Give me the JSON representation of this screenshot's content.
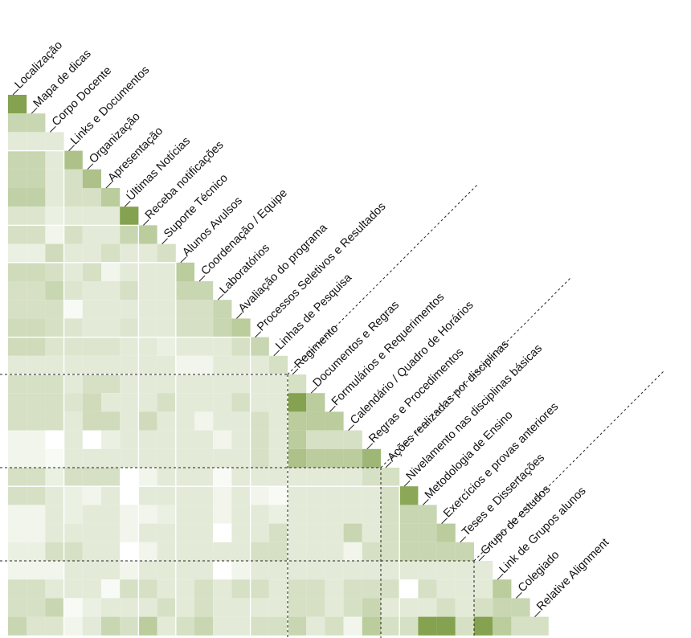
{
  "chart_data": {
    "type": "heatmap",
    "labels": [
      "Localização",
      "Mapa de dicas",
      "Corpo Docente",
      "Links e Documentos",
      "Organização",
      "Apresentação",
      "Últimas Notícias",
      "Receba notificações",
      "Suporte Técnico",
      "Alunos Avulsos",
      "Coordenação / Equipe",
      "Laboratórios",
      "Avaliação do programa",
      "Processos Seletivos e Resultados",
      "Linhas de Pesquisa",
      "Regimento",
      "Documentos e Regras",
      "Formulários e Requerimentos",
      "Calendário / Quadro de Horários",
      "Regras e Procedimentos",
      "Ações realizadas por disciplinas",
      "Nivelamento nas disciplinas básicas",
      "Metodologia de Ensino",
      "Exercícios e provas anteriores",
      "Teses e Dissertações",
      "Grupo de estudos",
      "Link de Grupos alunos",
      "Colegiado",
      "Relative Alignment"
    ],
    "group_boundaries": [
      15,
      20,
      25
    ],
    "block_separators": [
      3,
      7,
      9,
      13,
      15,
      21
    ],
    "color_low": "#ffffff",
    "color_high": "#76983b",
    "value_range": [
      0,
      1
    ],
    "matrix": [
      [
        0.9
      ],
      [
        0.4,
        0.4
      ],
      [
        0.2,
        0.2,
        0.2
      ],
      [
        0.4,
        0.4,
        0.2,
        0.6
      ],
      [
        0.4,
        0.4,
        0.2,
        0.3,
        0.6
      ],
      [
        0.45,
        0.45,
        0.2,
        0.3,
        0.3,
        0.5
      ],
      [
        0.25,
        0.25,
        0.15,
        0.2,
        0.2,
        0.2,
        0.9
      ],
      [
        0.3,
        0.3,
        0.1,
        0.3,
        0.2,
        0.2,
        0.4,
        0.5
      ],
      [
        0.15,
        0.15,
        0.35,
        0.2,
        0.2,
        0.3,
        0.2,
        0.2,
        0.3
      ],
      [
        0.35,
        0.35,
        0.3,
        0.2,
        0.3,
        0.1,
        0.2,
        0.2,
        0.2,
        0.5
      ],
      [
        0.3,
        0.3,
        0.4,
        0.25,
        0.2,
        0.2,
        0.3,
        0.2,
        0.2,
        0.4,
        0.4
      ],
      [
        0.3,
        0.3,
        0.3,
        0.05,
        0.2,
        0.2,
        0.2,
        0.2,
        0.2,
        0.3,
        0.3,
        0.4
      ],
      [
        0.35,
        0.35,
        0.3,
        0.25,
        0.2,
        0.2,
        0.25,
        0.2,
        0.2,
        0.3,
        0.3,
        0.4,
        0.5
      ],
      [
        0.35,
        0.35,
        0.25,
        0.25,
        0.25,
        0.25,
        0.2,
        0.2,
        0.15,
        0.2,
        0.2,
        0.2,
        0.3,
        0.4
      ],
      [
        0.2,
        0.2,
        0.2,
        0.2,
        0.2,
        0.2,
        0.2,
        0.2,
        0.2,
        0.1,
        0.1,
        0.2,
        0.2,
        0.2,
        0.3
      ],
      [
        0.3,
        0.3,
        0.3,
        0.2,
        0.3,
        0.3,
        0.2,
        0.2,
        0.2,
        0.2,
        0.2,
        0.2,
        0.2,
        0.2,
        0.2,
        0.3
      ],
      [
        0.3,
        0.3,
        0.3,
        0.25,
        0.35,
        0.2,
        0.2,
        0.2,
        0.3,
        0.2,
        0.2,
        0.2,
        0.3,
        0.2,
        0.2,
        0.9,
        0.5
      ],
      [
        0.3,
        0.3,
        0.3,
        0.2,
        0.35,
        0.35,
        0.2,
        0.35,
        0.2,
        0.2,
        0.1,
        0.2,
        0.2,
        0.3,
        0.2,
        0.5,
        0.5,
        0.5
      ],
      [
        0.1,
        0.1,
        0.0,
        0.2,
        0.0,
        0.15,
        0.2,
        0.2,
        0.2,
        0.2,
        0.2,
        0.1,
        0.2,
        0.3,
        0.2,
        0.5,
        0.3,
        0.3,
        0.3
      ],
      [
        0.1,
        0.1,
        0.05,
        0.2,
        0.2,
        0.2,
        0.2,
        0.2,
        0.2,
        0.2,
        0.2,
        0.2,
        0.2,
        0.3,
        0.2,
        0.6,
        0.5,
        0.5,
        0.5,
        0.7
      ],
      [
        0.3,
        0.3,
        0.15,
        0.3,
        0.3,
        0.3,
        0.0,
        0.1,
        0.2,
        0.2,
        0.2,
        0.05,
        0.2,
        0.2,
        0.2,
        0.2,
        0.2,
        0.2,
        0.2,
        0.3,
        0.3
      ],
      [
        0.3,
        0.3,
        0.2,
        0.15,
        0.1,
        0.2,
        0.0,
        0.2,
        0.2,
        0.2,
        0.2,
        0.1,
        0.2,
        0.1,
        0.05,
        0.2,
        0.2,
        0.2,
        0.2,
        0.2,
        0.3,
        0.85
      ],
      [
        0.1,
        0.1,
        0.2,
        0.15,
        0.2,
        0.2,
        0.1,
        0.1,
        0.15,
        0.2,
        0.2,
        0.1,
        0.2,
        0.2,
        0.15,
        0.2,
        0.2,
        0.2,
        0.2,
        0.2,
        0.3,
        0.4,
        0.4
      ],
      [
        0.1,
        0.1,
        0.2,
        0.2,
        0.2,
        0.2,
        0.1,
        0.2,
        0.2,
        0.2,
        0.2,
        0.0,
        0.2,
        0.2,
        0.3,
        0.2,
        0.2,
        0.2,
        0.4,
        0.2,
        0.3,
        0.4,
        0.4,
        0.5
      ],
      [
        0.15,
        0.15,
        0.3,
        0.3,
        0.2,
        0.2,
        0.0,
        0.1,
        0.2,
        0.2,
        0.2,
        0.2,
        0.2,
        0.3,
        0.3,
        0.2,
        0.2,
        0.2,
        0.1,
        0.3,
        0.3,
        0.4,
        0.4,
        0.4,
        0.4
      ],
      [
        0.1,
        0.1,
        0.1,
        0.2,
        0.2,
        0.2,
        0.1,
        0.2,
        0.2,
        0.2,
        0.2,
        0.0,
        0.1,
        0.2,
        0.2,
        0.2,
        0.2,
        0.2,
        0.2,
        0.2,
        0.2,
        0.2,
        0.2,
        0.2,
        0.2,
        0.2
      ],
      [
        0.3,
        0.3,
        0.2,
        0.2,
        0.2,
        0.05,
        0.3,
        0.3,
        0.2,
        0.2,
        0.3,
        0.2,
        0.3,
        0.3,
        0.2,
        0.3,
        0.3,
        0.2,
        0.3,
        0.3,
        0.3,
        0.0,
        0.3,
        0.2,
        0.2,
        0.2,
        0.5
      ],
      [
        0.3,
        0.3,
        0.4,
        0.05,
        0.15,
        0.2,
        0.2,
        0.2,
        0.3,
        0.2,
        0.3,
        0.2,
        0.2,
        0.2,
        0.2,
        0.3,
        0.3,
        0.2,
        0.3,
        0.4,
        0.2,
        0.2,
        0.2,
        0.3,
        0.2,
        0.3,
        0.4,
        0.4
      ],
      [
        0.4,
        0.25,
        0.25,
        0.1,
        0.2,
        0.4,
        0.3,
        0.5,
        0.2,
        0.3,
        0.4,
        0.2,
        0.2,
        0.3,
        0.3,
        0.4,
        0.2,
        0.3,
        0.1,
        0.5,
        0.3,
        0.3,
        0.9,
        0.9,
        0.3,
        0.9,
        0.5,
        0.3,
        0.3
      ]
    ]
  }
}
